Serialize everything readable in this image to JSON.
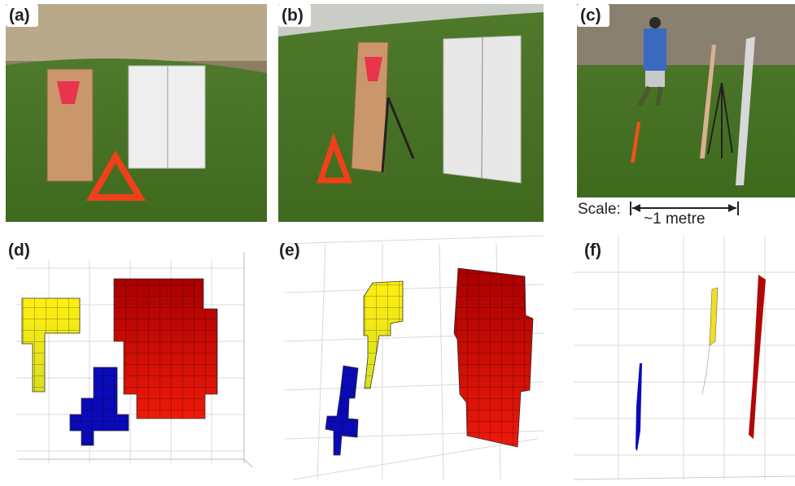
{
  "panels": [
    {
      "label": "(a)"
    },
    {
      "label": "(b)"
    },
    {
      "label": "(c)"
    },
    {
      "label": "(d)"
    },
    {
      "label": "(e)"
    },
    {
      "label": "(f)"
    }
  ],
  "scale": {
    "label": "Scale:",
    "length": "~1 metre"
  }
}
